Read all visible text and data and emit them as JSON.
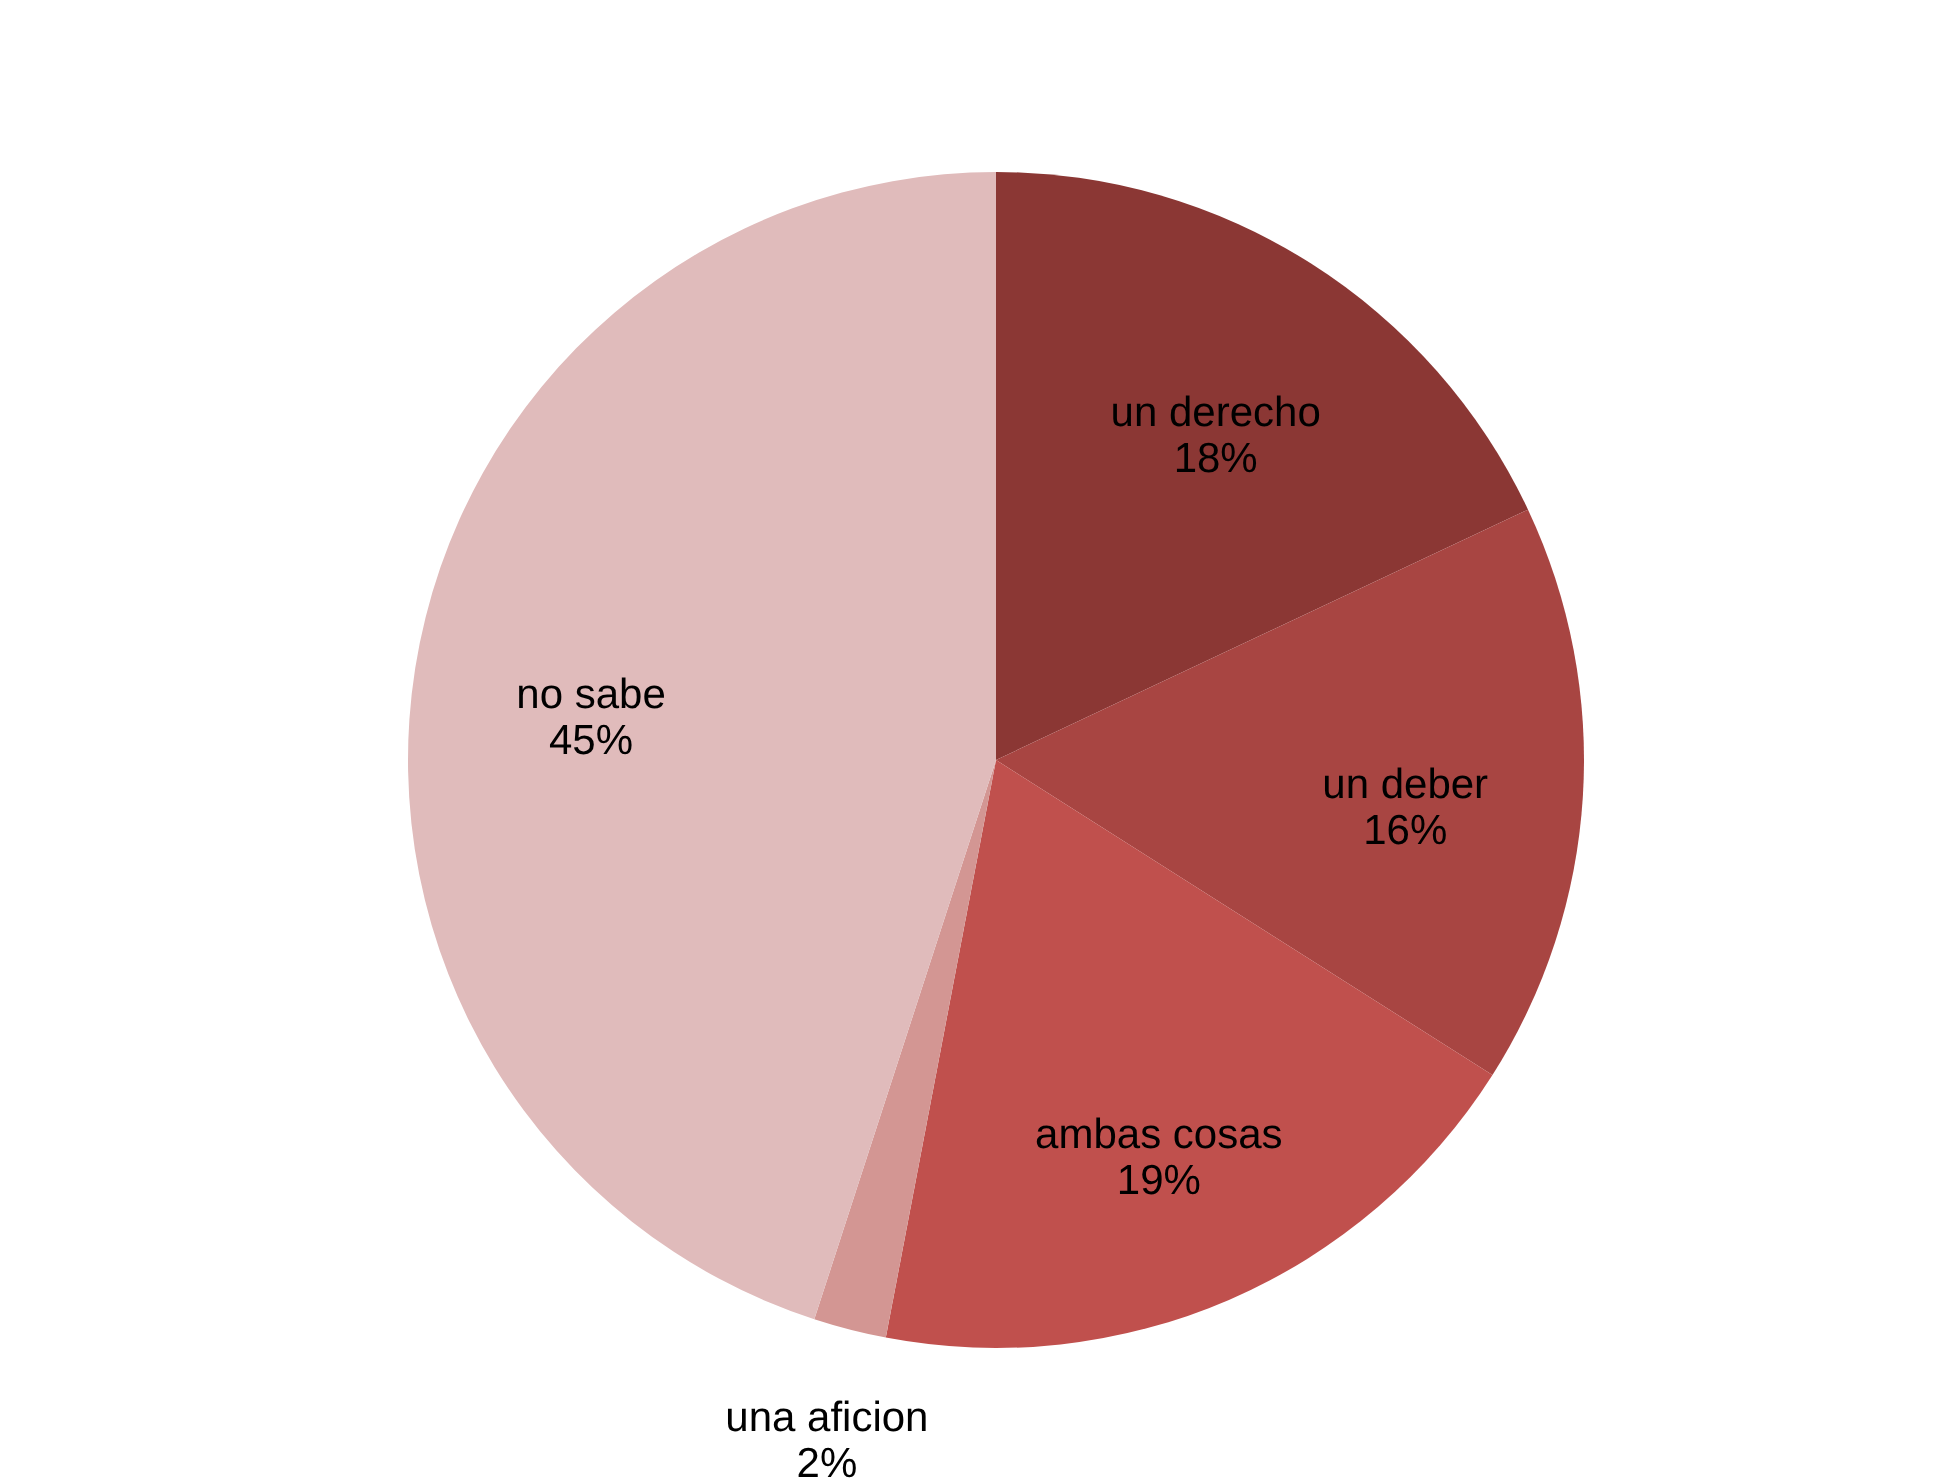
{
  "chart_data": {
    "type": "pie",
    "categories": [
      "un derecho",
      "un deber",
      "ambas cosas",
      "una aficion",
      "no sabe"
    ],
    "values": [
      18,
      16,
      19,
      2,
      45
    ],
    "value_labels": [
      "18%",
      "16%",
      "19%",
      "2%",
      "45%"
    ],
    "colors": [
      "#8b3734",
      "#a84542",
      "#c0504d",
      "#d39693",
      "#e0bbbb"
    ]
  }
}
